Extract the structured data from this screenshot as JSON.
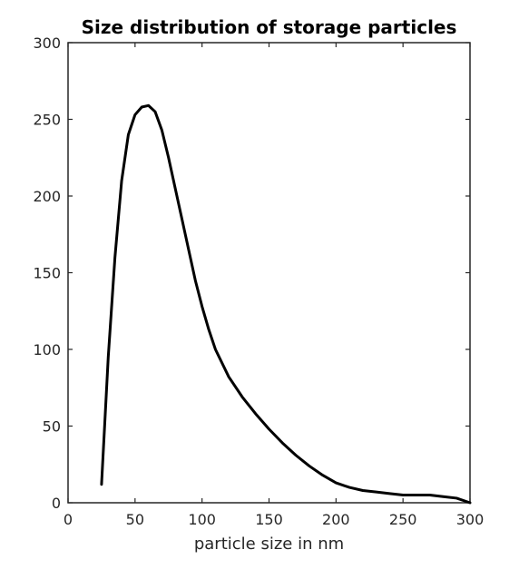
{
  "chart_data": {
    "type": "line",
    "title": "Size distribution of storage particles",
    "xlabel": "particle size in nm",
    "ylabel": "",
    "xlim": [
      0,
      300
    ],
    "ylim": [
      0,
      300
    ],
    "x_ticks": [
      0,
      50,
      100,
      150,
      200,
      250,
      300
    ],
    "y_ticks": [
      0,
      50,
      100,
      150,
      200,
      250,
      300
    ],
    "grid": false,
    "legend": "none",
    "series": [
      {
        "color": "#000000",
        "x": [
          25,
          30,
          35,
          40,
          45,
          50,
          55,
          60,
          65,
          70,
          75,
          80,
          85,
          90,
          95,
          100,
          105,
          110,
          120,
          130,
          140,
          150,
          160,
          170,
          180,
          190,
          200,
          210,
          220,
          230,
          240,
          250,
          260,
          270,
          280,
          290,
          300
        ],
        "y": [
          12,
          95,
          160,
          210,
          240,
          253,
          258,
          259,
          255,
          243,
          225,
          205,
          185,
          165,
          145,
          128,
          113,
          100,
          82,
          69,
          58,
          48,
          39,
          31,
          24,
          18,
          13,
          10,
          8,
          7,
          6,
          5,
          5,
          5,
          4,
          3,
          0
        ]
      }
    ]
  }
}
